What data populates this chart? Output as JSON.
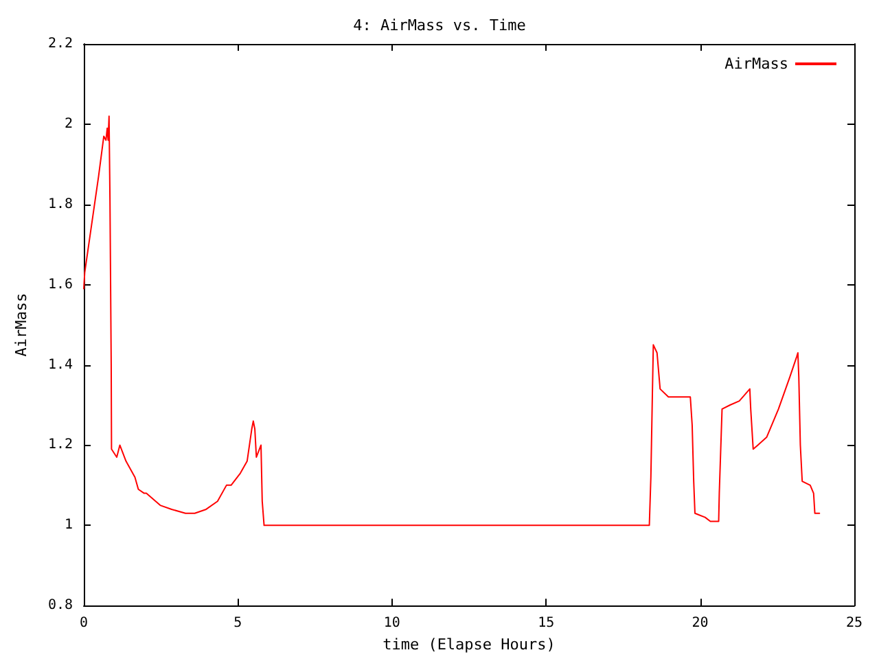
{
  "chart_data": {
    "type": "line",
    "title": "4: AirMass vs. Time",
    "xlabel": "time (Elapse Hours)",
    "ylabel": "AirMass",
    "xlim": [
      0,
      25
    ],
    "xticks": [
      0,
      5,
      10,
      15,
      20,
      25
    ],
    "ylim": [
      0.8,
      2.2
    ],
    "yticks": [
      0.8,
      1,
      1.2,
      1.4,
      1.6,
      1.8,
      2,
      2.2
    ],
    "grid": false,
    "legend": "top right",
    "marker": "none",
    "line_style": "solid",
    "series": [
      {
        "name": "AirMass",
        "color": "#ff0000",
        "x": [
          0,
          0.03,
          0.18,
          0.33,
          0.48,
          0.65,
          0.72,
          0.76,
          0.79,
          0.82,
          0.85,
          0.89,
          0.9,
          1.07,
          1.17,
          1.37,
          1.66,
          1.77,
          1.96,
          2.03,
          2.48,
          2.85,
          3.3,
          3.6,
          3.97,
          4.34,
          4.63,
          4.78,
          5.08,
          5.3,
          5.45,
          5.5,
          5.55,
          5.6,
          5.75,
          5.79,
          5.85,
          6.0,
          18.35,
          18.4,
          18.45,
          18.48,
          18.6,
          18.7,
          18.97,
          19.19,
          19.56,
          19.68,
          19.74,
          19.79,
          19.83,
          20.16,
          20.33,
          20.6,
          20.62,
          20.71,
          20.97,
          21.27,
          21.61,
          21.64,
          21.72,
          21.87,
          22.16,
          22.54,
          22.91,
          23.13,
          23.17,
          23.2,
          23.25,
          23.31,
          23.57,
          23.68,
          23.72,
          23.87
        ],
        "values": [
          1.59,
          1.63,
          1.71,
          1.79,
          1.87,
          1.97,
          1.96,
          1.99,
          1.96,
          2.02,
          1.81,
          1.4,
          1.19,
          1.17,
          1.2,
          1.16,
          1.12,
          1.09,
          1.08,
          1.08,
          1.05,
          1.04,
          1.03,
          1.03,
          1.04,
          1.06,
          1.1,
          1.1,
          1.13,
          1.16,
          1.24,
          1.26,
          1.24,
          1.17,
          1.2,
          1.06,
          1.0,
          1.0,
          1.0,
          1.12,
          1.33,
          1.45,
          1.43,
          1.34,
          1.32,
          1.32,
          1.32,
          1.32,
          1.25,
          1.11,
          1.03,
          1.02,
          1.01,
          1.01,
          1.08,
          1.29,
          1.3,
          1.31,
          1.34,
          1.29,
          1.19,
          1.2,
          1.22,
          1.29,
          1.37,
          1.42,
          1.43,
          1.37,
          1.2,
          1.11,
          1.1,
          1.08,
          1.03,
          1.03
        ]
      }
    ]
  }
}
